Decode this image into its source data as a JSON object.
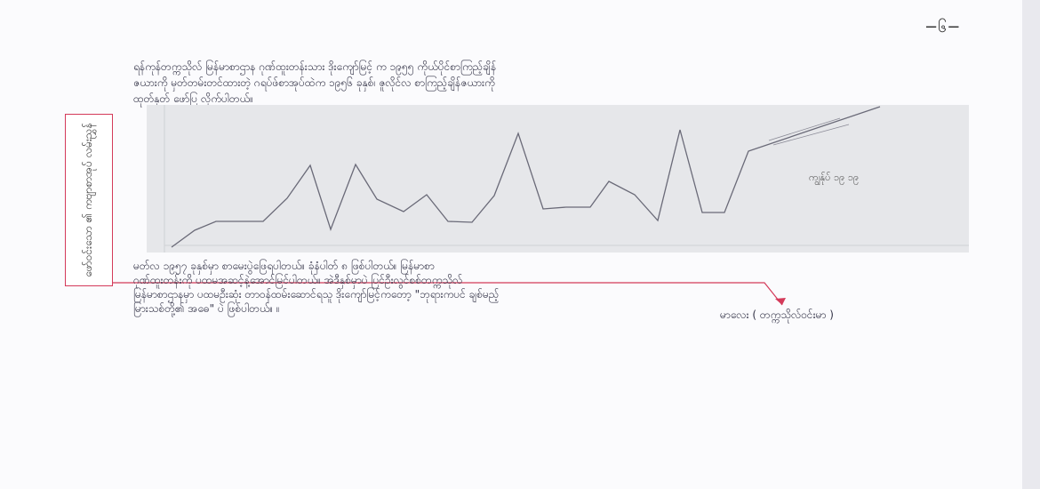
{
  "page_number": "−၆−",
  "paragraph1": [
    "ရန်ကုန်တက္ကသိုလ် မြန်မာစာဌာန ဂုဏ်ထူးတန်းသား ဒိုးကျော်မြင့် က ၁၉၅၅ ကိုယ်ပိုင်စာကြည့်ချိန်",
    "ဇယားကို မှတ်တမ်းတင်ထားတဲ့ ဂရပ်ဖ်စာအုပ်ထဲက ၁၉၅၆ ခုနှစ်၊ ဇူလိုင်လ စာကြည့်ချိန်ဇယားကို",
    "ထုတ်နုတ် ဖော်ပြ လိုက်ပါတယ်။"
  ],
  "chart_annotation": "ကျွန်ုပ် ၁၉ ၁၉",
  "side_note": "ဖော်ဝင်းသော ၏ ကဗျာစာအုပ် လမ်းညွှန်",
  "paragraph2": [
    "မတ်လ   ၁၉၅၇   ခုနှစ်မှာ   စာမေးပွဲဖြေရပါတယ်။   ခုံနံပါတ်   ၈   ဖြစ်ပါတယ်။   မြန်မာစာ",
    "ဂုဏ်ထူးတန်းကို   ပထမအဆင့်နဲ့အောင်မြင်ပါတယ်။   အဲဒီနှစ်မှာပဲ   ပြင်ဦးလွင်စစ်တက္ကသိုလ်",
    "မြန်မာစာဌာနမှာ ပထမဦးဆုံး တာဝန်ထမ်းဆောင်ရသူ  ဒိုးကျော်မြင့်ကတော့ \"ဘုရားကပင် ချစ်မည့်",
    "မြားသစ်တို့၏ အဓေ\" ပဲ ဖြစ်ပါတယ်။ ။"
  ],
  "signature": "မာလေး ( တက္ကသိုလ်ဝင်းမာ )",
  "colors": {
    "annotation_red": "#d43a5a",
    "ink": "#333347",
    "chart_bg": "#e6e7ea"
  }
}
